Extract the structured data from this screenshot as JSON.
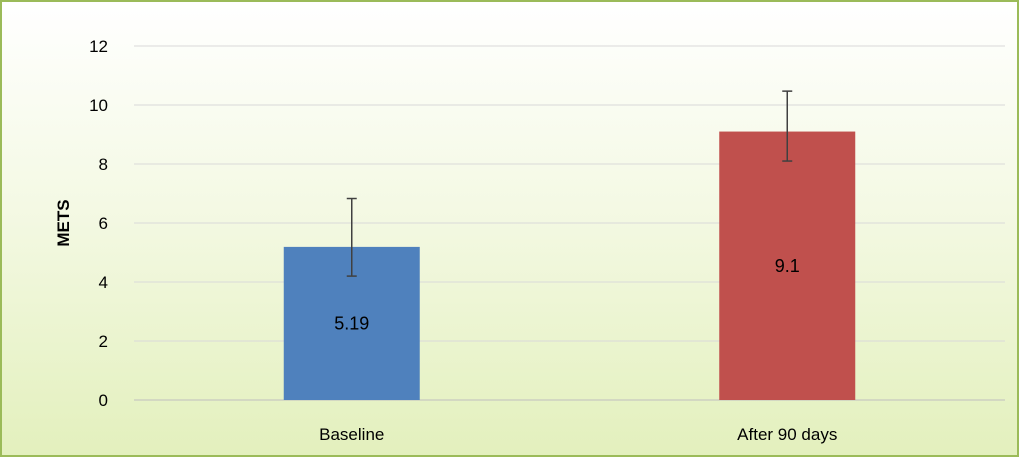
{
  "chart_data": {
    "type": "bar",
    "title": "",
    "xlabel": "",
    "ylabel": "METS",
    "ylim": [
      0,
      12
    ],
    "yticks": [
      0,
      2,
      4,
      6,
      8,
      10,
      12
    ],
    "categories": [
      "Baseline",
      "After 90 days"
    ],
    "values": [
      5.19,
      9.1
    ],
    "data_labels": [
      "5.19",
      "9.1"
    ],
    "error_bars": [
      {
        "low": 4.2,
        "high": 6.83
      },
      {
        "low": 8.1,
        "high": 10.47
      }
    ],
    "colors": [
      "#4f81bd",
      "#c0504d"
    ],
    "grid": true,
    "legend": "none"
  }
}
